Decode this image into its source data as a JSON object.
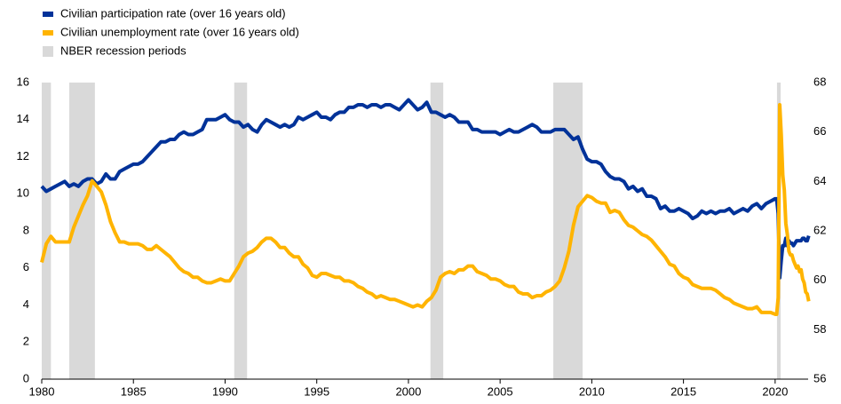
{
  "chart_data": {
    "type": "line",
    "x": [
      1980,
      1980.25,
      1980.5,
      1980.75,
      1981,
      1981.25,
      1981.5,
      1981.75,
      1982,
      1982.25,
      1982.5,
      1982.75,
      1983,
      1983.25,
      1983.5,
      1983.75,
      1984,
      1984.25,
      1984.5,
      1984.75,
      1985,
      1985.25,
      1985.5,
      1985.75,
      1986,
      1986.25,
      1986.5,
      1986.75,
      1987,
      1987.25,
      1987.5,
      1987.75,
      1988,
      1988.25,
      1988.5,
      1988.75,
      1989,
      1989.25,
      1989.5,
      1989.75,
      1990,
      1990.25,
      1990.5,
      1990.75,
      1991,
      1991.25,
      1991.5,
      1991.75,
      1992,
      1992.25,
      1992.5,
      1992.75,
      1993,
      1993.25,
      1993.5,
      1993.75,
      1994,
      1994.25,
      1994.5,
      1994.75,
      1995,
      1995.25,
      1995.5,
      1995.75,
      1996,
      1996.25,
      1996.5,
      1996.75,
      1997,
      1997.25,
      1997.5,
      1997.75,
      1998,
      1998.25,
      1998.5,
      1998.75,
      1999,
      1999.25,
      1999.5,
      1999.75,
      2000,
      2000.25,
      2000.5,
      2000.75,
      2001,
      2001.25,
      2001.5,
      2001.75,
      2002,
      2002.25,
      2002.5,
      2002.75,
      2003,
      2003.25,
      2003.5,
      2003.75,
      2004,
      2004.25,
      2004.5,
      2004.75,
      2005,
      2005.25,
      2005.5,
      2005.75,
      2006,
      2006.25,
      2006.5,
      2006.75,
      2007,
      2007.25,
      2007.5,
      2007.75,
      2008,
      2008.25,
      2008.5,
      2008.75,
      2009,
      2009.25,
      2009.5,
      2009.75,
      2010,
      2010.25,
      2010.5,
      2010.75,
      2011,
      2011.25,
      2011.5,
      2011.75,
      2012,
      2012.25,
      2012.5,
      2012.75,
      2013,
      2013.25,
      2013.5,
      2013.75,
      2014,
      2014.25,
      2014.5,
      2014.75,
      2015,
      2015.25,
      2015.5,
      2015.75,
      2016,
      2016.25,
      2016.5,
      2016.75,
      2017,
      2017.25,
      2017.5,
      2017.75,
      2018,
      2018.25,
      2018.5,
      2018.75,
      2019,
      2019.25,
      2019.5,
      2019.75,
      2020,
      2020.083,
      2020.167,
      2020.25,
      2020.333,
      2020.417,
      2020.5,
      2020.583,
      2020.667,
      2020.75,
      2020.833,
      2020.917,
      2021,
      2021.083,
      2021.167,
      2021.25,
      2021.333,
      2021.417,
      2021.5,
      2021.583,
      2021.667,
      2021.75,
      2021.833
    ],
    "series": [
      {
        "name": "Civilian participation rate (over 16 years old)",
        "color": "#003299",
        "axis": "y2",
        "values": [
          63.8,
          63.6,
          63.7,
          63.8,
          63.9,
          64.0,
          63.8,
          63.9,
          63.8,
          64.0,
          64.1,
          64.1,
          63.9,
          64.0,
          64.3,
          64.1,
          64.1,
          64.4,
          64.5,
          64.6,
          64.7,
          64.7,
          64.8,
          65.0,
          65.2,
          65.4,
          65.6,
          65.6,
          65.7,
          65.7,
          65.9,
          66.0,
          65.9,
          65.9,
          66.0,
          66.1,
          66.5,
          66.5,
          66.5,
          66.6,
          66.7,
          66.5,
          66.4,
          66.4,
          66.2,
          66.3,
          66.1,
          66.0,
          66.3,
          66.5,
          66.4,
          66.3,
          66.2,
          66.3,
          66.2,
          66.3,
          66.6,
          66.5,
          66.6,
          66.7,
          66.8,
          66.6,
          66.6,
          66.5,
          66.7,
          66.8,
          66.8,
          67.0,
          67.0,
          67.1,
          67.1,
          67.0,
          67.1,
          67.1,
          67.0,
          67.1,
          67.1,
          67.0,
          66.9,
          67.1,
          67.3,
          67.1,
          66.9,
          67.0,
          67.2,
          66.8,
          66.8,
          66.7,
          66.6,
          66.7,
          66.6,
          66.4,
          66.4,
          66.4,
          66.1,
          66.1,
          66.0,
          66.0,
          66.0,
          66.0,
          65.9,
          66.0,
          66.1,
          66.0,
          66.0,
          66.1,
          66.2,
          66.3,
          66.2,
          66.0,
          66.0,
          66.0,
          66.1,
          66.1,
          66.1,
          65.9,
          65.7,
          65.8,
          65.3,
          64.9,
          64.8,
          64.8,
          64.7,
          64.4,
          64.2,
          64.1,
          64.1,
          64.0,
          63.7,
          63.8,
          63.6,
          63.7,
          63.4,
          63.4,
          63.3,
          62.9,
          63.0,
          62.8,
          62.8,
          62.9,
          62.8,
          62.7,
          62.5,
          62.6,
          62.8,
          62.7,
          62.8,
          62.7,
          62.8,
          62.8,
          62.9,
          62.7,
          62.8,
          62.9,
          62.8,
          63.0,
          63.1,
          62.9,
          63.1,
          63.2,
          63.3,
          63.3,
          62.7,
          60.1,
          60.8,
          61.4,
          61.4,
          61.7,
          61.4,
          61.6,
          61.5,
          61.5,
          61.4,
          61.5,
          61.6,
          61.6,
          61.6,
          61.6,
          61.7,
          61.7,
          61.6,
          61.6,
          61.8
        ]
      },
      {
        "name": "Civilian unemployment rate (over 16 years old)",
        "color": "#ffb400",
        "values": [
          6.3,
          7.3,
          7.7,
          7.4,
          7.4,
          7.4,
          7.4,
          8.2,
          8.8,
          9.4,
          9.9,
          10.7,
          10.4,
          10.1,
          9.4,
          8.5,
          7.9,
          7.4,
          7.4,
          7.3,
          7.3,
          7.3,
          7.2,
          7.0,
          7.0,
          7.2,
          7.0,
          6.8,
          6.6,
          6.3,
          6.0,
          5.8,
          5.7,
          5.5,
          5.5,
          5.3,
          5.2,
          5.2,
          5.3,
          5.4,
          5.3,
          5.3,
          5.7,
          6.1,
          6.6,
          6.8,
          6.9,
          7.1,
          7.4,
          7.6,
          7.6,
          7.4,
          7.1,
          7.1,
          6.8,
          6.6,
          6.6,
          6.2,
          6.0,
          5.6,
          5.5,
          5.7,
          5.7,
          5.6,
          5.5,
          5.5,
          5.3,
          5.3,
          5.2,
          5.0,
          4.9,
          4.7,
          4.6,
          4.4,
          4.5,
          4.4,
          4.3,
          4.3,
          4.2,
          4.1,
          4.0,
          3.9,
          4.0,
          3.9,
          4.2,
          4.4,
          4.8,
          5.5,
          5.7,
          5.8,
          5.7,
          5.9,
          5.9,
          6.1,
          6.1,
          5.8,
          5.7,
          5.6,
          5.4,
          5.4,
          5.3,
          5.1,
          5.0,
          5.0,
          4.7,
          4.6,
          4.6,
          4.4,
          4.5,
          4.5,
          4.7,
          4.8,
          5.0,
          5.3,
          6.0,
          6.9,
          8.3,
          9.3,
          9.6,
          9.9,
          9.8,
          9.6,
          9.5,
          9.5,
          9.0,
          9.1,
          9.0,
          8.6,
          8.3,
          8.2,
          8.0,
          7.8,
          7.7,
          7.5,
          7.2,
          6.9,
          6.6,
          6.2,
          6.1,
          5.7,
          5.5,
          5.4,
          5.1,
          5.0,
          4.9,
          4.9,
          4.9,
          4.8,
          4.6,
          4.4,
          4.3,
          4.1,
          4.0,
          3.9,
          3.8,
          3.8,
          3.9,
          3.6,
          3.6,
          3.6,
          3.5,
          3.5,
          4.4,
          14.8,
          13.2,
          11.0,
          10.2,
          8.4,
          7.8,
          6.9,
          6.7,
          6.7,
          6.4,
          6.2,
          6.0,
          6.1,
          5.8,
          5.9,
          5.4,
          5.2,
          4.7,
          4.6,
          4.2
        ]
      },
      {
        "name": "NBER recession periods",
        "color": "#d9d9d9",
        "periods": [
          [
            1980.0,
            1980.5
          ],
          [
            1981.5,
            1982.9
          ],
          [
            1990.5,
            1991.2
          ],
          [
            2001.2,
            2001.9
          ],
          [
            2007.9,
            2009.5
          ],
          [
            2020.1,
            2020.3
          ]
        ]
      }
    ],
    "xlim": [
      1980,
      2021.8
    ],
    "xticks": [
      1980,
      1985,
      1990,
      1995,
      2000,
      2005,
      2010,
      2015,
      2020
    ],
    "ylim": [
      0,
      16
    ],
    "yticks": [
      0,
      2,
      4,
      6,
      8,
      10,
      12,
      14,
      16
    ],
    "y2lim": [
      56,
      68
    ],
    "y2ticks": [
      56,
      58,
      60,
      62,
      64,
      66,
      68
    ]
  }
}
